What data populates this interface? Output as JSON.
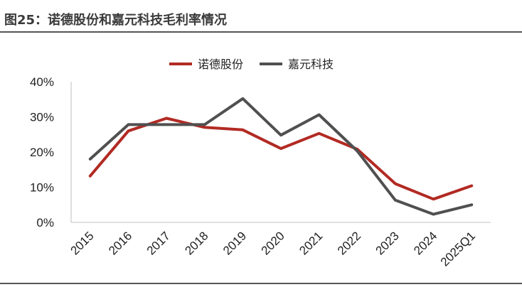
{
  "page": {
    "title": "图25：诺德股份和嘉元科技毛利率情况"
  },
  "chart_data": {
    "type": "line",
    "categories": [
      "2015",
      "2016",
      "2017",
      "2018",
      "2019",
      "2020",
      "2021",
      "2022",
      "2023",
      "2024",
      "2025Q1"
    ],
    "series": [
      {
        "name": "诺德股份",
        "color": "#b22a23",
        "values": [
          13.2,
          26.0,
          29.6,
          27.0,
          26.3,
          21.0,
          25.3,
          20.8,
          11.0,
          6.6,
          10.4
        ]
      },
      {
        "name": "嘉元科技",
        "color": "#505050",
        "values": [
          18.0,
          27.8,
          27.8,
          27.8,
          35.2,
          24.8,
          30.6,
          20.3,
          6.3,
          2.3,
          5.0
        ]
      }
    ],
    "ylim": [
      0,
      40
    ],
    "yticks": [
      "0%",
      "10%",
      "20%",
      "30%",
      "40%"
    ],
    "legend": "top-center",
    "grid": false
  }
}
